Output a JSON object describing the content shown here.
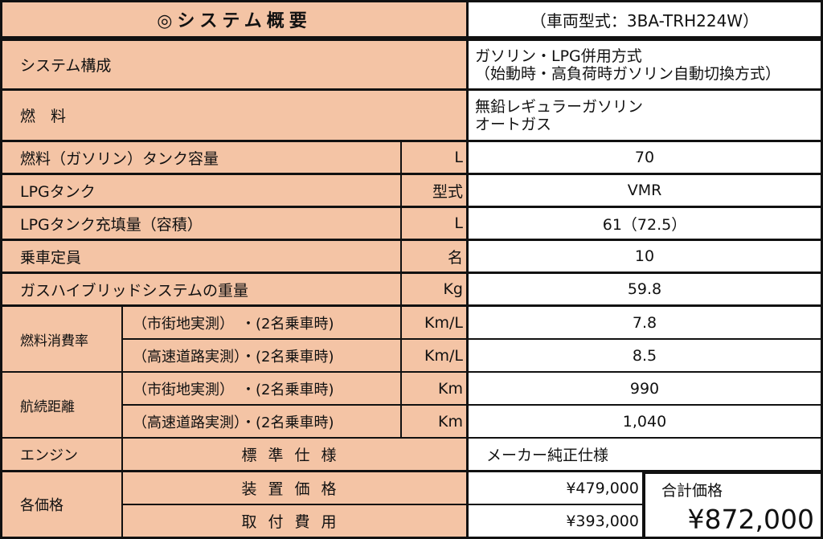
{
  "header": {
    "title": "◎システム概要",
    "model": "（車両型式：3BA-TRH224W）"
  },
  "rows": [
    {
      "label": "システム構成",
      "value_lines": [
        "ガソリン・LPG併用方式",
        "（始動時・高負荷時ガソリン自動切換方式）"
      ]
    },
    {
      "label": "燃　料",
      "value_lines": [
        "無鉛レギュラーガソリン",
        "オートガス"
      ]
    },
    {
      "label": "燃料（ガソリン）タンク容量",
      "unit": "L",
      "value": "70"
    },
    {
      "label": "LPGタンク",
      "unit": "型式",
      "value": "VMR"
    },
    {
      "label": "LPGタンク充填量（容積）",
      "unit": "L",
      "value": "61（72.5）"
    },
    {
      "label": "乗車定員",
      "unit": "名",
      "value": "10"
    },
    {
      "label": "ガスハイブリッドシステムの重量",
      "unit": "Kg",
      "value": "59.8"
    }
  ],
  "fuel_economy": {
    "label": "燃料消費率",
    "items": [
      {
        "condition": "（市街地実測）　・(2名乗車時)",
        "unit": "Km/L",
        "value": "7.8"
      },
      {
        "condition": "（高速道路実測）・(2名乗車時)",
        "unit": "Km/L",
        "value": "8.5"
      }
    ]
  },
  "range": {
    "label": "航続距離",
    "items": [
      {
        "condition": "（市街地実測）　・(2名乗車時)",
        "unit": "Km",
        "value": "990"
      },
      {
        "condition": "（高速道路実測）・(2名乗車時)",
        "unit": "Km",
        "value": "1,040"
      }
    ]
  },
  "engine": {
    "label": "エンジン",
    "sub": "標準仕様",
    "value": "メーカー純正仕様"
  },
  "prices": {
    "label": "各価格",
    "device_label": "装置価格",
    "device_value": "¥479,000",
    "install_label": "取付費用",
    "install_value": "¥393,000",
    "total_label": "合計価格",
    "total_value": "¥872,000"
  },
  "colors": {
    "label_bg": "#f4c4a5",
    "border": "#111111"
  }
}
